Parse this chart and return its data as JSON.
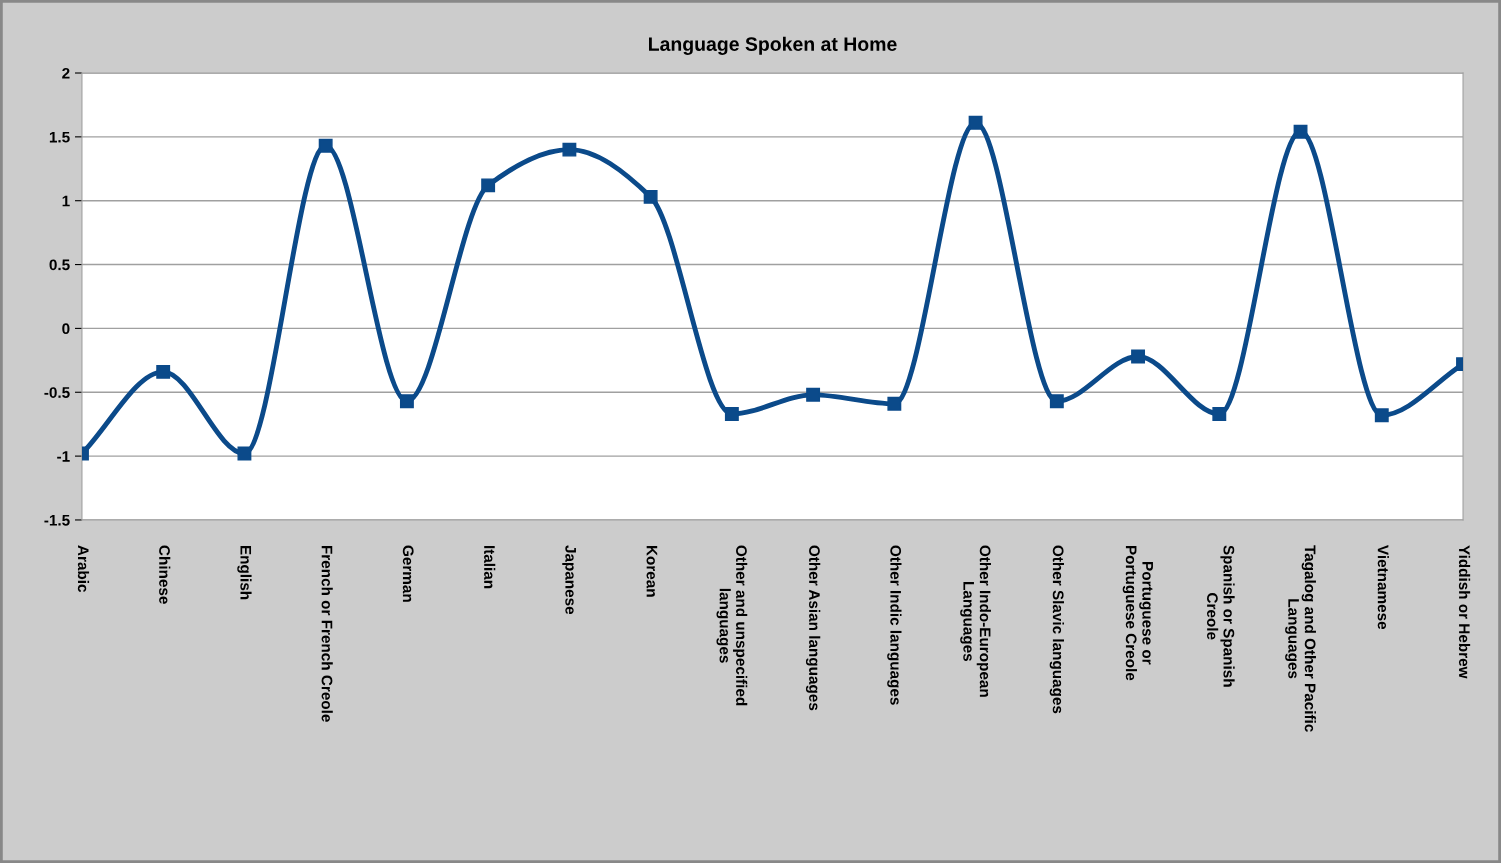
{
  "chart_data": {
    "type": "line",
    "title": "Language Spoken at Home",
    "categories": [
      "Arabic",
      "Chinese",
      "English",
      "French or French Creole",
      "German",
      "Italian",
      "Japanese",
      "Korean",
      "Other and unspecified\nlanguages",
      "Other Asian languages",
      "Other Indic languages",
      "Other Indo-European\nLanguages",
      "Other Slavic languages",
      "Portuguese or\nPortuguese Creole",
      "Spanish or Spanish\nCreole",
      "Tagalog and Other Pacific\nLanguages",
      "Vietnamese",
      "Yiddish or Hebrew"
    ],
    "series": [
      {
        "color": "#0b4a8a",
        "values": [
          -0.98,
          -0.34,
          -0.98,
          1.43,
          -0.57,
          1.12,
          1.4,
          1.03,
          -0.67,
          -0.52,
          -0.59,
          1.61,
          -0.57,
          -0.22,
          -0.67,
          1.54,
          -0.68,
          -0.28
        ]
      }
    ],
    "ylim": [
      -1.5,
      2
    ],
    "yticks": [
      -1.5,
      -1,
      -0.5,
      0,
      0.5,
      1,
      1.5,
      2
    ],
    "grid": "y",
    "marker": "square",
    "line_style": "solid",
    "legend": false
  }
}
